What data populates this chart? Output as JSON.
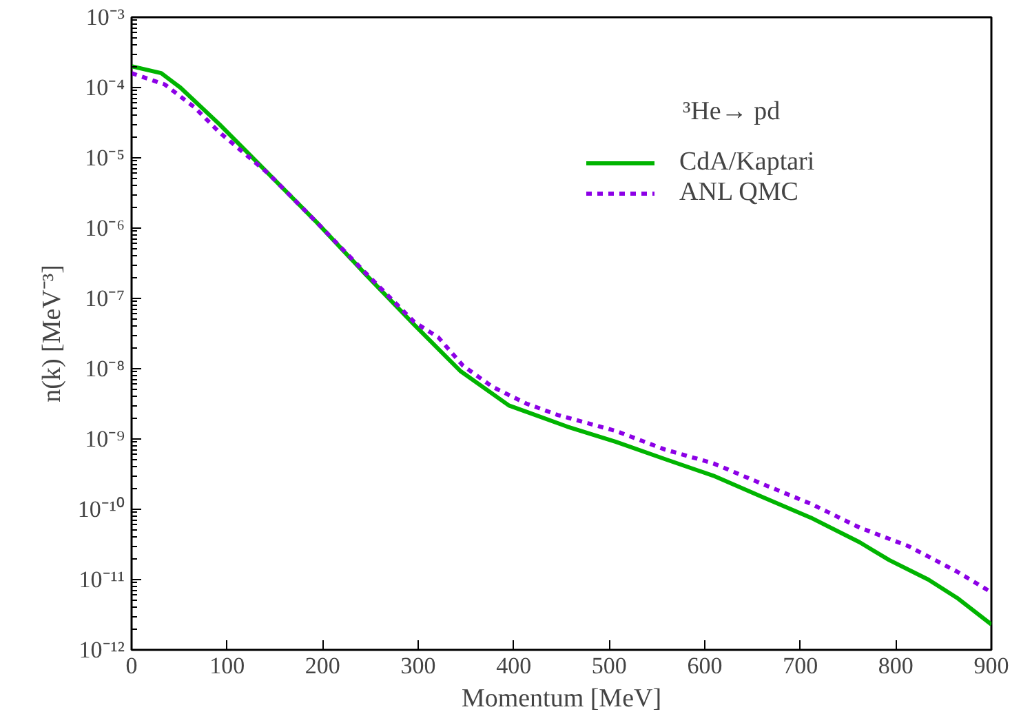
{
  "chart_data": {
    "type": "line",
    "xlabel": "Momentum [MeV]",
    "ylabel": "n(k) [MeV⁻³]",
    "annotations": [
      "³He→ pd"
    ],
    "log": "y",
    "grid": false,
    "legend": "top right",
    "xlim": [
      0,
      900
    ],
    "xticks": [
      0,
      100,
      200,
      300,
      400,
      500,
      600,
      700,
      800,
      900
    ],
    "ylim": [
      1e-12,
      0.001
    ],
    "yticks": [
      {
        "value": 0.001,
        "label": "10⁻³"
      },
      {
        "value": 0.0001,
        "label": "10⁻⁴"
      },
      {
        "value": 1e-05,
        "label": "10⁻⁵"
      },
      {
        "value": 1e-06,
        "label": "10⁻⁶"
      },
      {
        "value": 1e-07,
        "label": "10⁻⁷"
      },
      {
        "value": 1e-08,
        "label": "10⁻⁸"
      },
      {
        "value": 1e-09,
        "label": "10⁻⁹"
      },
      {
        "value": 1e-10,
        "label": "10⁻¹⁰"
      },
      {
        "value": 1e-11,
        "label": "10⁻¹¹"
      },
      {
        "value": 1e-12,
        "label": "10⁻¹²"
      }
    ],
    "series": [
      {
        "name": "CdA/Kaptari",
        "color": "#00b400",
        "line_style": "solid",
        "x": [
          0,
          31,
          51,
          92,
          143,
          194,
          245,
          296,
          344,
          395,
          456,
          507,
          558,
          609,
          660,
          711,
          762,
          793,
          834,
          864,
          900
        ],
        "values": [
          0.0002,
          0.00016,
          0.0001,
          3e-05,
          6e-06,
          1.2e-06,
          2.2e-07,
          4.2e-08,
          9.3e-09,
          3e-09,
          1.5e-09,
          9.1e-10,
          5.2e-10,
          3e-10,
          1.5e-10,
          7.6e-11,
          3.4e-11,
          1.9e-11,
          1e-11,
          5.5e-12,
          2.3e-12
        ]
      },
      {
        "name": "ANL QMC",
        "color": "#8c00e6",
        "line_style": "dashed",
        "x": [
          0,
          35,
          66,
          92,
          143,
          194,
          245,
          296,
          321,
          347,
          378,
          413,
          446,
          507,
          558,
          609,
          660,
          711,
          762,
          813,
          864,
          900
        ],
        "values": [
          0.00016,
          0.00011,
          5.2e-05,
          2.3e-05,
          6e-06,
          1.2e-06,
          2.3e-07,
          4.6e-08,
          2.8e-08,
          1.1e-08,
          5.5e-09,
          3.2e-09,
          2.2e-09,
          1.3e-09,
          7.1e-10,
          4.5e-10,
          2.3e-10,
          1.2e-10,
          5.5e-11,
          3e-11,
          1.3e-11,
          6.6e-12
        ]
      }
    ]
  }
}
